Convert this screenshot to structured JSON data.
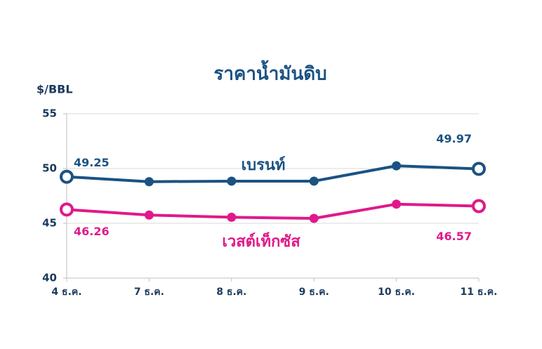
{
  "chart_data": {
    "type": "line",
    "title": "ราคาน้ำมันดิบ",
    "y_label": "$/BBL",
    "categories": [
      "4 ธ.ค.",
      "7 ธ.ค.",
      "8 ธ.ค.",
      "9 ธ.ค.",
      "10 ธ.ค.",
      "11 ธ.ค."
    ],
    "series": [
      {
        "name": "เบรนท์",
        "color": "#1b5283",
        "values": [
          49.25,
          48.8,
          48.85,
          48.85,
          50.25,
          49.97
        ],
        "value_labels": [
          "49.25",
          null,
          null,
          null,
          null,
          "49.97"
        ]
      },
      {
        "name": "เวสต์เท็กซัส",
        "color": "#e0198a",
        "values": [
          46.26,
          45.75,
          45.55,
          45.45,
          46.75,
          46.57
        ],
        "value_labels": [
          "46.26",
          null,
          null,
          null,
          null,
          "46.57"
        ]
      }
    ],
    "ylim": [
      40,
      55
    ],
    "yticks": [
      40,
      45,
      50,
      55
    ],
    "grid": true
  }
}
